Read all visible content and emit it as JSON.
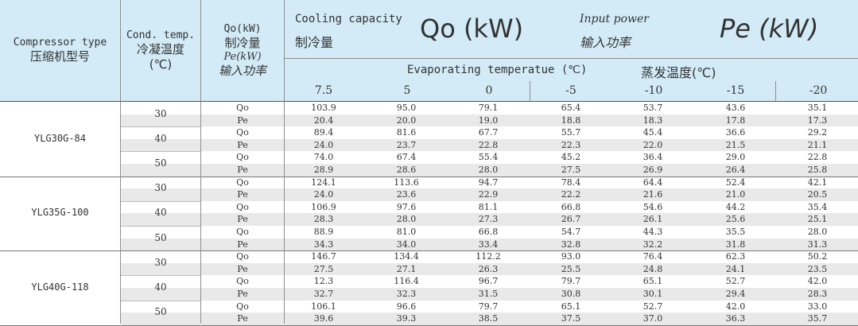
{
  "header": {
    "compressor_en": "Compressor type",
    "compressor_cn": "压缩机型号",
    "cond_en": "Cond. temp.",
    "cond_cn": "冷凝温度",
    "cond_unit": "(℃)",
    "qo_label": "Qo(kW)",
    "qo_cn": "制冷量",
    "pe_label": "Pe(kW)",
    "pe_cn": "输入功率",
    "cooling_en": "Cooling capacity",
    "cooling_cn": "制冷量",
    "cooling_big": "Qo (kW)",
    "input_en": "Input power",
    "input_cn": "输入功率",
    "input_big": "Pe (kW)",
    "evap_en": "Evaporating temperatue (℃)",
    "evap_cn": "蒸发温度(℃)",
    "evap_temps": [
      "7.5",
      "5",
      "0",
      "-5",
      "-10",
      "-15",
      "-20"
    ]
  },
  "groups": [
    {
      "type": "YLG30G-84",
      "conds": [
        {
          "temp": "30",
          "qo": [
            "103.9",
            "95.0",
            "79.1",
            "65.4",
            "53.7",
            "43.6",
            "35.1"
          ],
          "pe": [
            "20.4",
            "20.0",
            "19.0",
            "18.8",
            "18.3",
            "17.8",
            "17.3"
          ]
        },
        {
          "temp": "40",
          "qo": [
            "89.4",
            "81.6",
            "67.7",
            "55.7",
            "45.4",
            "36.6",
            "29.2"
          ],
          "pe": [
            "24.0",
            "23.7",
            "22.8",
            "22.3",
            "22.0",
            "21.5",
            "21.1"
          ]
        },
        {
          "temp": "50",
          "qo": [
            "74.0",
            "67.4",
            "55.4",
            "45.2",
            "36.4",
            "29.0",
            "22.8"
          ],
          "pe": [
            "28.9",
            "28.6",
            "28.0",
            "27.5",
            "26.9",
            "26.4",
            "25.8"
          ]
        }
      ]
    },
    {
      "type": "YLG35G-100",
      "conds": [
        {
          "temp": "30",
          "qo": [
            "124.1",
            "113.6",
            "94.7",
            "78.4",
            "64.4",
            "52.4",
            "42.1"
          ],
          "pe": [
            "24.0",
            "23.6",
            "22.9",
            "22.2",
            "21.6",
            "21.0",
            "20.5"
          ]
        },
        {
          "temp": "40",
          "qo": [
            "106.9",
            "97.6",
            "81.1",
            "66.8",
            "54.6",
            "44.2",
            "35.4"
          ],
          "pe": [
            "28.3",
            "28.0",
            "27.3",
            "26.7",
            "26.1",
            "25.6",
            "25.1"
          ]
        },
        {
          "temp": "50",
          "qo": [
            "88.9",
            "81.0",
            "66.8",
            "54.7",
            "44.3",
            "35.5",
            "28.0"
          ],
          "pe": [
            "34.3",
            "34.0",
            "33.4",
            "32.8",
            "32.2",
            "31.8",
            "31.3"
          ]
        }
      ]
    },
    {
      "type": "YLG40G-118",
      "conds": [
        {
          "temp": "30",
          "qo": [
            "146.7",
            "134.4",
            "112.2",
            "93.0",
            "76.4",
            "62.3",
            "50.2"
          ],
          "pe": [
            "27.5",
            "27.1",
            "26.3",
            "25.5",
            "24.8",
            "24.1",
            "23.5"
          ]
        },
        {
          "temp": "40",
          "qo": [
            "12.3",
            "116.4",
            "96.7",
            "79.7",
            "65.1",
            "52.7",
            "42.0"
          ],
          "pe": [
            "32.7",
            "32.3",
            "31.5",
            "30.8",
            "30.1",
            "29.4",
            "28.3"
          ]
        },
        {
          "temp": "50",
          "qo": [
            "106.1",
            "96.6",
            "79.7",
            "65.1",
            "52.7",
            "42.0",
            "33.0"
          ],
          "pe": [
            "39.6",
            "39.3",
            "38.5",
            "37.5",
            "37.0",
            "36.3",
            "35.7"
          ]
        }
      ]
    }
  ],
  "row_labels": {
    "qo": "Qo",
    "pe": "Pe"
  }
}
